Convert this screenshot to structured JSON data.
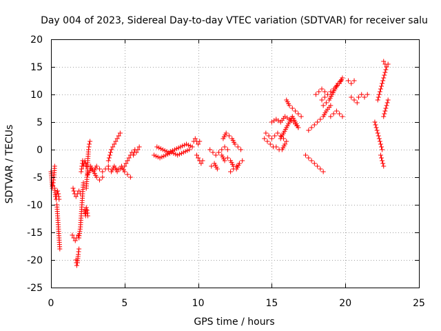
{
  "chart_data": {
    "type": "scatter",
    "title": "Day 004 of 2023, Sidereal Day-to-day VTEC variation (SDTVAR) for receiver salu",
    "xlabel": "GPS time / hours",
    "ylabel": "SDTVAR / TECUs",
    "xlim": [
      0,
      25
    ],
    "ylim": [
      -25,
      20
    ],
    "x_ticks": [
      0,
      5,
      10,
      15,
      20,
      25
    ],
    "y_ticks": [
      -25,
      -20,
      -15,
      -10,
      -5,
      0,
      5,
      10,
      15,
      20
    ],
    "grid": true,
    "marker": "+",
    "marker_color": "#ff0000",
    "series": [
      {
        "name": "SDTVAR",
        "segments": [
          {
            "x": [
              0.0,
              0.05,
              0.1,
              0.15,
              0.2,
              0.25
            ],
            "y": [
              -4,
              -5.5,
              -7,
              -6,
              -5,
              -3
            ]
          },
          {
            "x": [
              0.25,
              0.3,
              0.35,
              0.4,
              0.45,
              0.5,
              0.55
            ],
            "y": [
              -7,
              -8.5,
              -9,
              -8,
              -7.5,
              -8,
              -9
            ]
          },
          {
            "x": [
              0.4,
              0.45,
              0.5,
              0.55,
              0.6
            ],
            "y": [
              -10,
              -12,
              -14,
              -16,
              -18
            ]
          },
          {
            "x": [
              1.45,
              1.55,
              1.65,
              1.75,
              1.85
            ],
            "y": [
              -15.5,
              -16,
              -16.5,
              -16,
              -15.5
            ]
          },
          {
            "x": [
              1.5,
              1.6,
              1.7,
              1.8,
              1.9,
              2.0
            ],
            "y": [
              -7,
              -8,
              -8.5,
              -8,
              -7.5,
              -8
            ]
          },
          {
            "x": [
              1.7,
              1.75,
              1.8,
              1.85,
              1.9
            ],
            "y": [
              -20,
              -21,
              -20.5,
              -19,
              -18
            ]
          },
          {
            "x": [
              1.9,
              2.0,
              2.05,
              2.1,
              2.15,
              2.2
            ],
            "y": [
              -16,
              -14,
              -12,
              -10,
              -8,
              -6
            ]
          },
          {
            "x": [
              2.05,
              2.1,
              2.15,
              2.2,
              2.3,
              2.4
            ],
            "y": [
              -4,
              -3,
              -2,
              -3,
              -2,
              -3
            ]
          },
          {
            "x": [
              2.3,
              2.35,
              2.4,
              2.45,
              2.5
            ],
            "y": [
              -11,
              -12,
              -10.5,
              -11,
              -12
            ]
          },
          {
            "x": [
              2.4,
              2.45,
              2.5,
              2.55,
              2.6,
              2.65
            ],
            "y": [
              -7,
              -5,
              -2,
              0,
              1,
              1.5
            ]
          },
          {
            "x": [
              2.5,
              2.7,
              2.9,
              3.1,
              3.3,
              3.5,
              3.7,
              3.9
            ],
            "y": [
              -4.5,
              -3.5,
              -4,
              -3,
              -3.5,
              -4,
              -3.5,
              -3
            ]
          },
          {
            "x": [
              2.7,
              2.9,
              3.1,
              3.3,
              3.5
            ],
            "y": [
              -3,
              -4,
              -5,
              -5.5,
              -5
            ]
          },
          {
            "x": [
              3.9,
              4.1,
              4.3,
              4.5,
              4.7
            ],
            "y": [
              -3.5,
              -4,
              -3,
              -4,
              -3.5
            ]
          },
          {
            "x": [
              3.9,
              4.0,
              4.1,
              4.2,
              4.3,
              4.4,
              4.5,
              4.6,
              4.7
            ],
            "y": [
              -2,
              -1,
              0,
              0.5,
              1,
              1.5,
              2,
              2.5,
              3
            ]
          },
          {
            "x": [
              4.6,
              4.8,
              5.0,
              5.2,
              5.4
            ],
            "y": [
              -3.5,
              -3,
              -4,
              -4.5,
              -5
            ]
          },
          {
            "x": [
              5.0,
              5.1,
              5.2,
              5.3,
              5.4,
              5.5,
              5.6,
              5.7,
              5.8,
              5.9,
              6.0
            ],
            "y": [
              -3,
              -2.5,
              -2,
              -1.5,
              -1,
              -0.5,
              -1,
              0,
              -0.5,
              0,
              0.5
            ]
          },
          {
            "x": [
              7.0,
              7.4,
              7.8,
              8.2,
              8.6,
              9.0,
              9.4
            ],
            "y": [
              -1,
              -1.5,
              -1,
              -0.5,
              -1,
              -0.5,
              0
            ]
          },
          {
            "x": [
              7.2,
              7.6,
              8.0,
              8.4,
              8.8,
              9.2,
              9.6
            ],
            "y": [
              0.5,
              0,
              -0.5,
              0,
              0.5,
              1,
              0.5
            ]
          },
          {
            "x": [
              9.7,
              9.8,
              9.9,
              10.0,
              10.1
            ],
            "y": [
              1.5,
              2,
              1.5,
              1,
              1.5
            ]
          },
          {
            "x": [
              9.9,
              10.0,
              10.1,
              10.2,
              10.3
            ],
            "y": [
              -1,
              -1.5,
              -2,
              -2.5,
              -2
            ]
          },
          {
            "x": [
              10.8,
              11.0,
              11.2,
              11.4,
              11.6,
              11.8,
              12.0
            ],
            "y": [
              0,
              -0.5,
              -1,
              -0.5,
              0,
              0.5,
              0
            ]
          },
          {
            "x": [
              10.9,
              11.1,
              11.3
            ],
            "y": [
              -3,
              -2.5,
              -3.5
            ]
          },
          {
            "x": [
              11.6,
              11.8,
              12.0,
              12.2,
              12.4,
              12.6,
              12.8
            ],
            "y": [
              -1,
              -2,
              -1.5,
              -2,
              -3,
              -3.5,
              -2.5
            ]
          },
          {
            "x": [
              11.7,
              11.9,
              12.1,
              12.3,
              12.5,
              12.7,
              12.9
            ],
            "y": [
              2,
              3,
              2.5,
              2,
              1,
              0.5,
              0
            ]
          },
          {
            "x": [
              12.2,
              12.4,
              12.6,
              12.8,
              13.0
            ],
            "y": [
              -4,
              -3.5,
              -3,
              -2.5,
              -2
            ]
          },
          {
            "x": [
              14.5,
              14.7,
              14.9,
              15.1,
              15.3,
              15.5,
              15.7,
              15.9
            ],
            "y": [
              2,
              1.5,
              1,
              0.5,
              0.5,
              0,
              0,
              1
            ]
          },
          {
            "x": [
              14.6,
              14.8,
              15.0,
              15.2,
              15.4,
              15.6,
              15.8,
              16.0
            ],
            "y": [
              3,
              2.5,
              2,
              2.5,
              3,
              2.5,
              2,
              1.5
            ]
          },
          {
            "x": [
              15.0,
              15.3,
              15.6,
              15.9,
              16.2,
              16.5,
              16.8
            ],
            "y": [
              5,
              5.5,
              5,
              6,
              5.5,
              5,
              4
            ]
          },
          {
            "x": [
              15.6,
              15.8,
              16.0,
              16.2,
              16.4,
              16.6,
              16.8
            ],
            "y": [
              2,
              3,
              4,
              5,
              6,
              5,
              4
            ]
          },
          {
            "x": [
              16.0,
              16.2,
              16.4,
              16.6,
              16.8,
              17.0
            ],
            "y": [
              9,
              8,
              7.5,
              7,
              6.5,
              6
            ]
          },
          {
            "x": [
              17.3,
              17.5,
              17.7,
              17.9,
              18.1,
              18.3,
              18.5
            ],
            "y": [
              -1,
              -1.5,
              -2,
              -2.5,
              -3,
              -3.5,
              -4
            ]
          },
          {
            "x": [
              17.5,
              17.7,
              17.9,
              18.1,
              18.3,
              18.5,
              18.7,
              19.0
            ],
            "y": [
              3.5,
              4,
              4.5,
              5,
              5.5,
              6,
              7,
              8
            ]
          },
          {
            "x": [
              18.0,
              18.2,
              18.4,
              18.6
            ],
            "y": [
              10,
              10.5,
              11,
              10.5
            ]
          },
          {
            "x": [
              18.4,
              18.6,
              18.8,
              19.0,
              19.2,
              19.4,
              19.6,
              19.8
            ],
            "y": [
              9,
              9.5,
              10,
              10.5,
              11,
              11.5,
              12,
              13
            ]
          },
          {
            "x": [
              18.5,
              18.7,
              18.9,
              19.1,
              19.3,
              19.5,
              19.7
            ],
            "y": [
              8,
              8.5,
              9,
              10,
              11,
              12,
              12.5
            ]
          },
          {
            "x": [
              19.0,
              19.2,
              19.4,
              19.6,
              19.8
            ],
            "y": [
              6,
              6.5,
              7,
              6.5,
              6
            ]
          },
          {
            "x": [
              20.2,
              20.4,
              20.6
            ],
            "y": [
              12.5,
              12,
              12.5
            ]
          },
          {
            "x": [
              20.4,
              20.6,
              20.8
            ],
            "y": [
              9.5,
              9,
              8.5
            ]
          },
          {
            "x": [
              20.9,
              21.1,
              21.3,
              21.5
            ],
            "y": [
              9.5,
              10,
              9.5,
              10
            ]
          },
          {
            "x": [
              22.0,
              22.1,
              22.2,
              22.3,
              22.4,
              22.5
            ],
            "y": [
              5,
              4,
              3,
              2,
              1,
              0
            ]
          },
          {
            "x": [
              22.4,
              22.45,
              22.5,
              22.55,
              22.6
            ],
            "y": [
              -1,
              -1.5,
              -2,
              -2.5,
              -3
            ]
          },
          {
            "x": [
              22.2,
              22.3,
              22.4,
              22.5,
              22.6,
              22.7,
              22.8
            ],
            "y": [
              9,
              10,
              11,
              12,
              13,
              14,
              15
            ]
          },
          {
            "x": [
              22.6,
              22.7,
              22.8,
              22.9
            ],
            "y": [
              16,
              15.5,
              15,
              15.5
            ]
          },
          {
            "x": [
              22.6,
              22.7,
              22.8,
              22.9
            ],
            "y": [
              6,
              7,
              8,
              9
            ]
          }
        ]
      }
    ]
  }
}
